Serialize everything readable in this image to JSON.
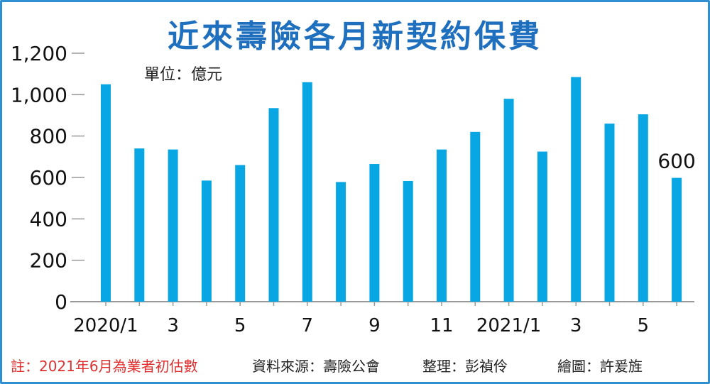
{
  "title": "近來壽險各月新契約保費",
  "unit": "單位：億元",
  "footer": {
    "note": "註：2021年6月為業者初估數",
    "source": "資料來源：壽險公會",
    "editor": "整理：彭禎伶",
    "artist": "繪圖：許爰旌"
  },
  "colors": {
    "bar": "#09a6e4",
    "title": "#1f6fbf",
    "frame": "#2f8fd0",
    "axis": "#999999"
  },
  "chart_data": {
    "type": "bar",
    "title": "近來壽險各月新契約保費",
    "ylabel": "單位：億元",
    "xlabel": "",
    "ylim": [
      0,
      1200
    ],
    "yticks": [
      0,
      200,
      400,
      600,
      800,
      1000,
      1200
    ],
    "ytick_labels": [
      "0",
      "200",
      "400",
      "600",
      "800",
      "1,000",
      "1,200"
    ],
    "categories": [
      "2020/1",
      "2",
      "3",
      "4",
      "5",
      "6",
      "7",
      "8",
      "9",
      "10",
      "11",
      "12",
      "2021/1",
      "2",
      "3",
      "4",
      "5",
      "6"
    ],
    "xtick_labels": [
      "2020/1",
      "",
      "3",
      "",
      "5",
      "",
      "7",
      "",
      "9",
      "",
      "11",
      "",
      "2021/1",
      "",
      "3",
      "",
      "5",
      ""
    ],
    "values": [
      1050,
      740,
      735,
      585,
      660,
      935,
      1060,
      578,
      665,
      583,
      735,
      820,
      980,
      725,
      1085,
      860,
      905,
      598
    ],
    "annotations": [
      {
        "index": 17,
        "text": "600"
      }
    ],
    "grid": false,
    "legend": "none"
  }
}
